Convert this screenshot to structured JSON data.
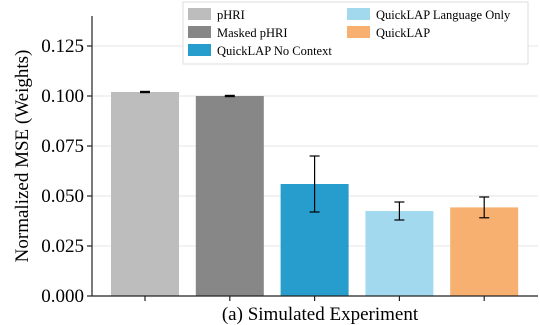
{
  "chart_data": {
    "type": "bar",
    "categories": [
      "pHRI",
      "Masked pHRI",
      "QuickLAP No Context",
      "QuickLAP Language Only",
      "QuickLAP"
    ],
    "values": [
      0.102,
      0.1,
      0.056,
      0.0425,
      0.0443
    ],
    "errors": [
      0.0003,
      0.0003,
      0.014,
      0.0045,
      0.0052
    ],
    "colors": [
      "#bdbdbd",
      "#878787",
      "#279dcd",
      "#a2d9ef",
      "#f8b070"
    ],
    "xlabel": "(a) Simulated Experiment",
    "ylabel": "Normalized MSE (Weights)",
    "ylim": [
      0,
      0.14
    ],
    "yticks": [
      0.0,
      0.025,
      0.05,
      0.075,
      0.1,
      0.125
    ],
    "ytick_labels": [
      "0.000",
      "0.025",
      "0.050",
      "0.075",
      "0.100",
      "0.125"
    ],
    "grid": true,
    "legend_placement": "top-right"
  }
}
